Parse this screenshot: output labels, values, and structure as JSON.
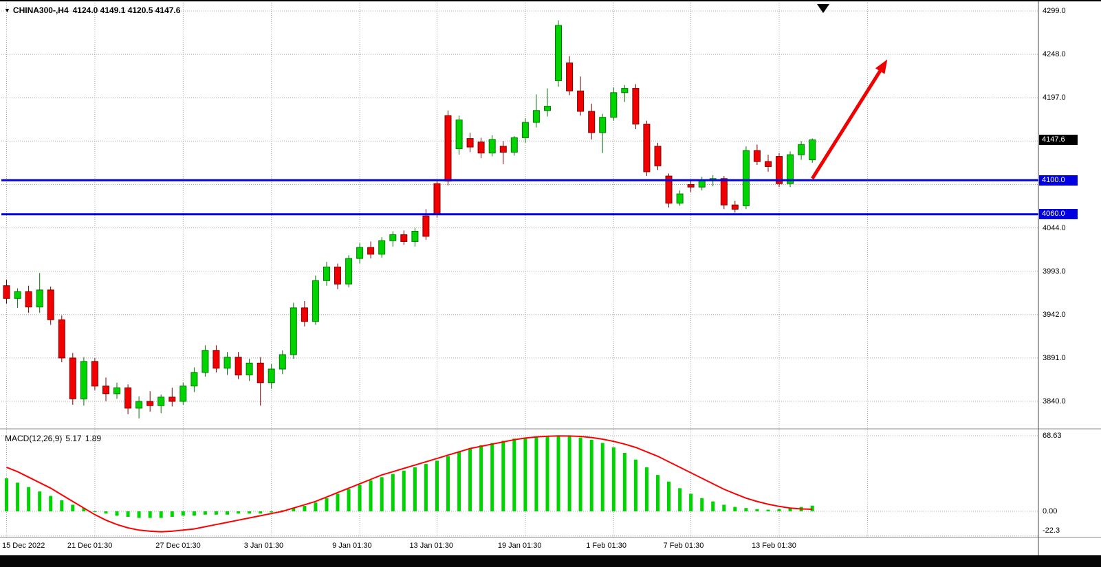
{
  "header": {
    "dropdown_icon": "▼",
    "symbol_period": "CHINA300-,H4",
    "ohlc_text": "4124.0 4149.1 4120.5 4147.6",
    "open": "4124.0",
    "high": "4149.1",
    "low": "4120.5",
    "close": "4147.6"
  },
  "macd": {
    "label": "MACD(12,26,9)",
    "value_main": "5.17",
    "value_signal": "1.89"
  },
  "price_axis": {
    "labels": [
      {
        "text": "4299.0",
        "value": 4299.0
      },
      {
        "text": "4248.0",
        "value": 4248.0
      },
      {
        "text": "4197.0",
        "value": 4197.0
      },
      {
        "text": "4044.0",
        "value": 4044.0
      },
      {
        "text": "3993.0",
        "value": 3993.0
      },
      {
        "text": "3942.0",
        "value": 3942.0
      },
      {
        "text": "3891.0",
        "value": 3891.0
      },
      {
        "text": "3840.0",
        "value": 3840.0
      }
    ],
    "current_badge": {
      "text": "4147.6",
      "value": 4147.6,
      "bg": "#000000",
      "fg": "#ffffff"
    },
    "line_badges": [
      {
        "text": "4100.0",
        "value": 4100.0,
        "bg": "#0000e0",
        "fg": "#ffffff"
      },
      {
        "text": "4060.0",
        "value": 4060.0,
        "bg": "#0000e0",
        "fg": "#ffffff"
      }
    ]
  },
  "macd_axis": {
    "labels": [
      {
        "text": "68.63",
        "value": 68.63
      },
      {
        "text": "0.00",
        "value": 0
      },
      {
        "text": "-22.3",
        "value": -22.3
      }
    ]
  },
  "time_axis": {
    "labels": [
      {
        "text": "15 Dec 2022",
        "index": 0
      },
      {
        "text": "21 Dec 01:30",
        "index": 8
      },
      {
        "text": "27 Dec 01:30",
        "index": 16
      },
      {
        "text": "3 Jan 01:30",
        "index": 24
      },
      {
        "text": "9 Jan 01:30",
        "index": 32
      },
      {
        "text": "13 Jan 01:30",
        "index": 39
      },
      {
        "text": "19 Jan 01:30",
        "index": 47
      },
      {
        "text": "1 Feb 01:30",
        "index": 55
      },
      {
        "text": "7 Feb 01:30",
        "index": 62
      },
      {
        "text": "13 Feb 01:30",
        "index": 70
      }
    ]
  },
  "chart_data": {
    "type": "candlestick",
    "title": "CHINA300- H4 candlestick chart with MACD(12,26,9)",
    "current_price": 4147.6,
    "price_gridlines": [
      4299,
      4248,
      4197,
      4146,
      4095,
      4044,
      3993,
      3942,
      3891,
      3840
    ],
    "ylim": [
      3809,
      4309
    ],
    "extra_time_gridline_indices": [
      78
    ],
    "ohlc": [
      [
        3976,
        3983,
        3955,
        3961
      ],
      [
        3961,
        3973,
        3950,
        3969
      ],
      [
        3969,
        3976,
        3944,
        3951
      ],
      [
        3951,
        3991,
        3944,
        3971
      ],
      [
        3971,
        3975,
        3930,
        3936
      ],
      [
        3936,
        3941,
        3886,
        3891
      ],
      [
        3891,
        3897,
        3836,
        3843
      ],
      [
        3843,
        3892,
        3835,
        3887
      ],
      [
        3887,
        3891,
        3853,
        3858
      ],
      [
        3858,
        3868,
        3840,
        3849
      ],
      [
        3849,
        3862,
        3843,
        3856
      ],
      [
        3856,
        3860,
        3825,
        3832
      ],
      [
        3832,
        3846,
        3820,
        3840
      ],
      [
        3840,
        3852,
        3828,
        3835
      ],
      [
        3835,
        3848,
        3826,
        3845
      ],
      [
        3845,
        3856,
        3834,
        3840
      ],
      [
        3840,
        3862,
        3836,
        3858
      ],
      [
        3858,
        3880,
        3851,
        3874
      ],
      [
        3874,
        3906,
        3869,
        3900
      ],
      [
        3900,
        3906,
        3874,
        3879
      ],
      [
        3879,
        3898,
        3871,
        3892
      ],
      [
        3892,
        3898,
        3866,
        3871
      ],
      [
        3871,
        3890,
        3864,
        3885
      ],
      [
        3885,
        3892,
        3835,
        3862
      ],
      [
        3862,
        3884,
        3855,
        3878
      ],
      [
        3878,
        3900,
        3872,
        3895
      ],
      [
        3895,
        3956,
        3890,
        3950
      ],
      [
        3950,
        3958,
        3928,
        3934
      ],
      [
        3934,
        3988,
        3930,
        3982
      ],
      [
        3982,
        4004,
        3976,
        3998
      ],
      [
        3998,
        4002,
        3972,
        3978
      ],
      [
        3978,
        4012,
        3974,
        4008
      ],
      [
        4008,
        4026,
        4002,
        4021
      ],
      [
        4021,
        4028,
        4008,
        4013
      ],
      [
        4013,
        4033,
        4009,
        4029
      ],
      [
        4029,
        4040,
        4022,
        4036
      ],
      [
        4036,
        4041,
        4024,
        4028
      ],
      [
        4028,
        4044,
        4022,
        4040
      ],
      [
        4058,
        4066,
        4030,
        4034
      ],
      [
        4096,
        4101,
        4056,
        4060
      ],
      [
        4176,
        4182,
        4094,
        4099
      ],
      [
        4137,
        4176,
        4130,
        4171
      ],
      [
        4149,
        4156,
        4133,
        4139
      ],
      [
        4145,
        4150,
        4126,
        4132
      ],
      [
        4132,
        4153,
        4128,
        4148
      ],
      [
        4140,
        4146,
        4119,
        4133
      ],
      [
        4133,
        4152,
        4129,
        4150
      ],
      [
        4150,
        4173,
        4144,
        4168
      ],
      [
        4168,
        4201,
        4162,
        4182
      ],
      [
        4182,
        4208,
        4175,
        4187
      ],
      [
        4217,
        4288,
        4210,
        4282
      ],
      [
        4238,
        4246,
        4200,
        4205
      ],
      [
        4205,
        4222,
        4176,
        4181
      ],
      [
        4181,
        4190,
        4148,
        4156
      ],
      [
        4156,
        4178,
        4132,
        4174
      ],
      [
        4174,
        4209,
        4170,
        4203
      ],
      [
        4203,
        4212,
        4192,
        4208
      ],
      [
        4208,
        4213,
        4160,
        4166
      ],
      [
        4166,
        4170,
        4105,
        4110
      ],
      [
        4140,
        4144,
        4112,
        4117
      ],
      [
        4105,
        4108,
        4068,
        4073
      ],
      [
        4073,
        4088,
        4070,
        4084
      ],
      [
        4095,
        4100,
        4086,
        4092
      ],
      [
        4092,
        4104,
        4088,
        4100
      ],
      [
        4100,
        4106,
        4093,
        4102
      ],
      [
        4102,
        4105,
        4066,
        4071
      ],
      [
        4071,
        4076,
        4062,
        4066
      ],
      [
        4070,
        4140,
        4066,
        4135
      ],
      [
        4135,
        4142,
        4118,
        4122
      ],
      [
        4122,
        4130,
        4110,
        4116
      ],
      [
        4128,
        4132,
        4092,
        4096
      ],
      [
        4096,
        4134,
        4092,
        4130
      ],
      [
        4130,
        4146,
        4124,
        4142
      ],
      [
        4124,
        4149.1,
        4120.5,
        4147.6
      ]
    ],
    "support_lines": [
      {
        "price": 4100.0,
        "label": "4100.0",
        "color": "#0000e0"
      },
      {
        "price": 4060.0,
        "label": "4060.0",
        "color": "#0000e0"
      }
    ],
    "arrow_annotation": {
      "color": "#f00000",
      "from": {
        "index": 73,
        "price": 4102
      },
      "to": {
        "index": 79.8,
        "price": 4242
      }
    },
    "macd": {
      "params": "12,26,9",
      "last_main": 5.17,
      "last_signal": 1.89,
      "ylim": [
        -22.3,
        68.63
      ],
      "gridlines": [
        68.63,
        0,
        -22.3
      ],
      "histogram": [
        30,
        26,
        22,
        18,
        14,
        10,
        6,
        3,
        0,
        -2,
        -4,
        -5,
        -6,
        -6,
        -6,
        -5,
        -4,
        -4,
        -3,
        -3,
        -3,
        -2,
        -2,
        -2,
        -1,
        1,
        3,
        5,
        8,
        12,
        16,
        20,
        24,
        28,
        31,
        34,
        37,
        40,
        43,
        46,
        50,
        54,
        57,
        60,
        62,
        64,
        66,
        67,
        67.8,
        68.3,
        68.6,
        68.2,
        67,
        65,
        62,
        58,
        53,
        47,
        40,
        33,
        27,
        21,
        16,
        12,
        9,
        6,
        4,
        3,
        2,
        1.5,
        2,
        3,
        4,
        5.17
      ],
      "signal": [
        40,
        36,
        31,
        26,
        21,
        15,
        9,
        3,
        -3,
        -8,
        -12,
        -15,
        -17,
        -18,
        -18.5,
        -18,
        -17,
        -16,
        -14,
        -12,
        -10,
        -8,
        -6,
        -4,
        -2,
        0,
        3,
        6,
        9,
        13,
        17,
        21,
        25,
        29,
        33,
        36,
        39,
        42,
        45,
        48,
        51,
        54,
        57,
        59,
        61,
        63,
        65,
        66.5,
        67.5,
        68.2,
        68.5,
        68.4,
        68,
        67,
        65.5,
        63.5,
        61,
        58,
        54,
        50,
        45,
        40,
        35,
        30,
        25,
        20,
        16,
        12,
        9,
        6.5,
        4.5,
        3,
        2.2,
        1.89
      ]
    },
    "colors": {
      "up": "#00d400",
      "up_stroke": "#007a00",
      "down": "#f20000",
      "down_stroke": "#7d0000",
      "support": "#0000e0",
      "signal": "#ff0000",
      "grid": "#a8a8a8",
      "background": "#ffffff",
      "arrow": "#f00000"
    }
  }
}
